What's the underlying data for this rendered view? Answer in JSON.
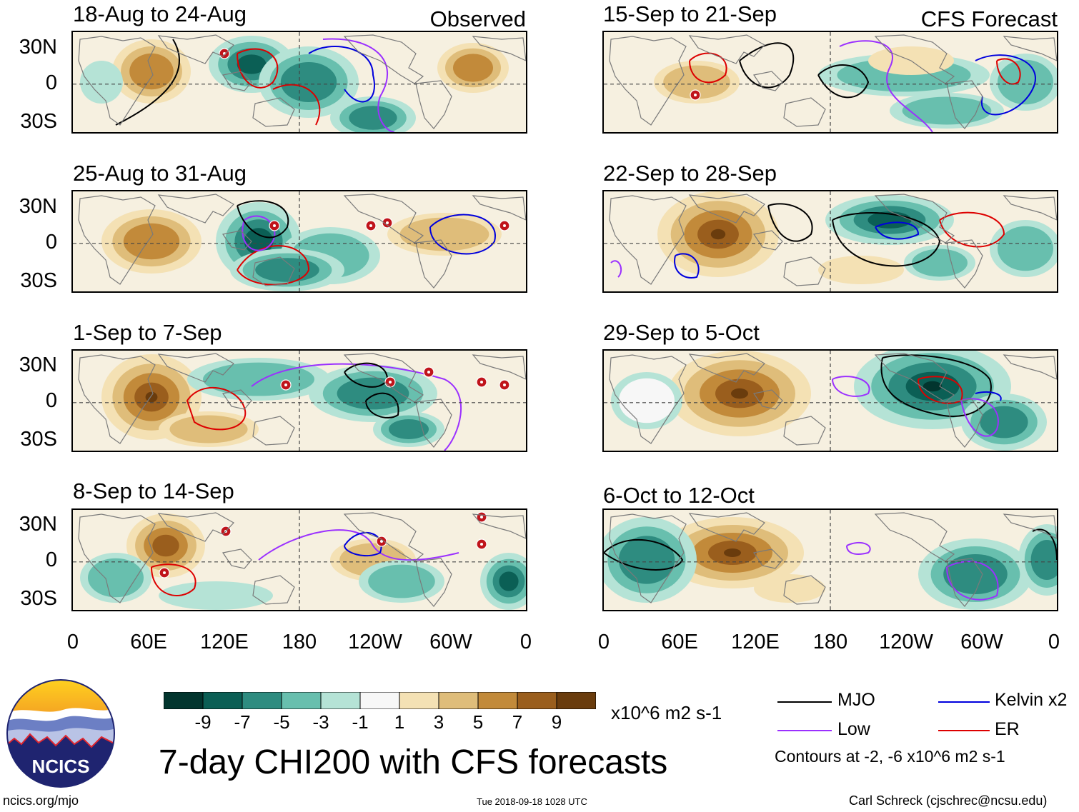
{
  "figure": {
    "title": "7-day CHI200 with CFS forecasts",
    "units": "x10^6 m2 s-1",
    "contour_note": "Contours at -2, -6 x10^6 m2 s-1",
    "url": "ncics.org/mjo",
    "timestamp": "Tue 2018-09-18 1028 UTC",
    "author": "Carl Schreck (cjschrec@ncsu.edu)",
    "logo_text": "NCICS"
  },
  "columns": {
    "left_tag": "Observed",
    "right_tag": "CFS Forecast"
  },
  "axes": {
    "lat_labels": [
      "30N",
      "0",
      "30S"
    ],
    "lon_labels": [
      "0",
      "60E",
      "120E",
      "180",
      "120W",
      "60W",
      "0"
    ]
  },
  "panels": {
    "left": [
      {
        "title": "18-Aug to 24-Aug"
      },
      {
        "title": "25-Aug to 31-Aug"
      },
      {
        "title": "1-Sep to 7-Sep"
      },
      {
        "title": "8-Sep to 14-Sep"
      }
    ],
    "right": [
      {
        "title": "15-Sep to 21-Sep"
      },
      {
        "title": "22-Sep to 28-Sep"
      },
      {
        "title": "29-Sep to 5-Oct"
      },
      {
        "title": "6-Oct to 12-Oct"
      }
    ]
  },
  "colorbar": {
    "tick_labels": [
      "-9",
      "-7",
      "-5",
      "-3",
      "-1",
      "1",
      "3",
      "5",
      "7",
      "9"
    ],
    "colors": [
      "#02352e",
      "#0b5f55",
      "#2e8c80",
      "#68bfae",
      "#b5e3d6",
      "#f7f7f7",
      "#f4e1b4",
      "#dfbd7a",
      "#c28a3a",
      "#9a5e1d",
      "#6a3c0d"
    ]
  },
  "legend": {
    "items": [
      {
        "name": "MJO",
        "color": "#000000"
      },
      {
        "name": "Low",
        "color": "#9b30ff"
      },
      {
        "name": "Kelvin x2",
        "color": "#0000dd"
      },
      {
        "name": "ER",
        "color": "#dd0000"
      }
    ]
  }
}
